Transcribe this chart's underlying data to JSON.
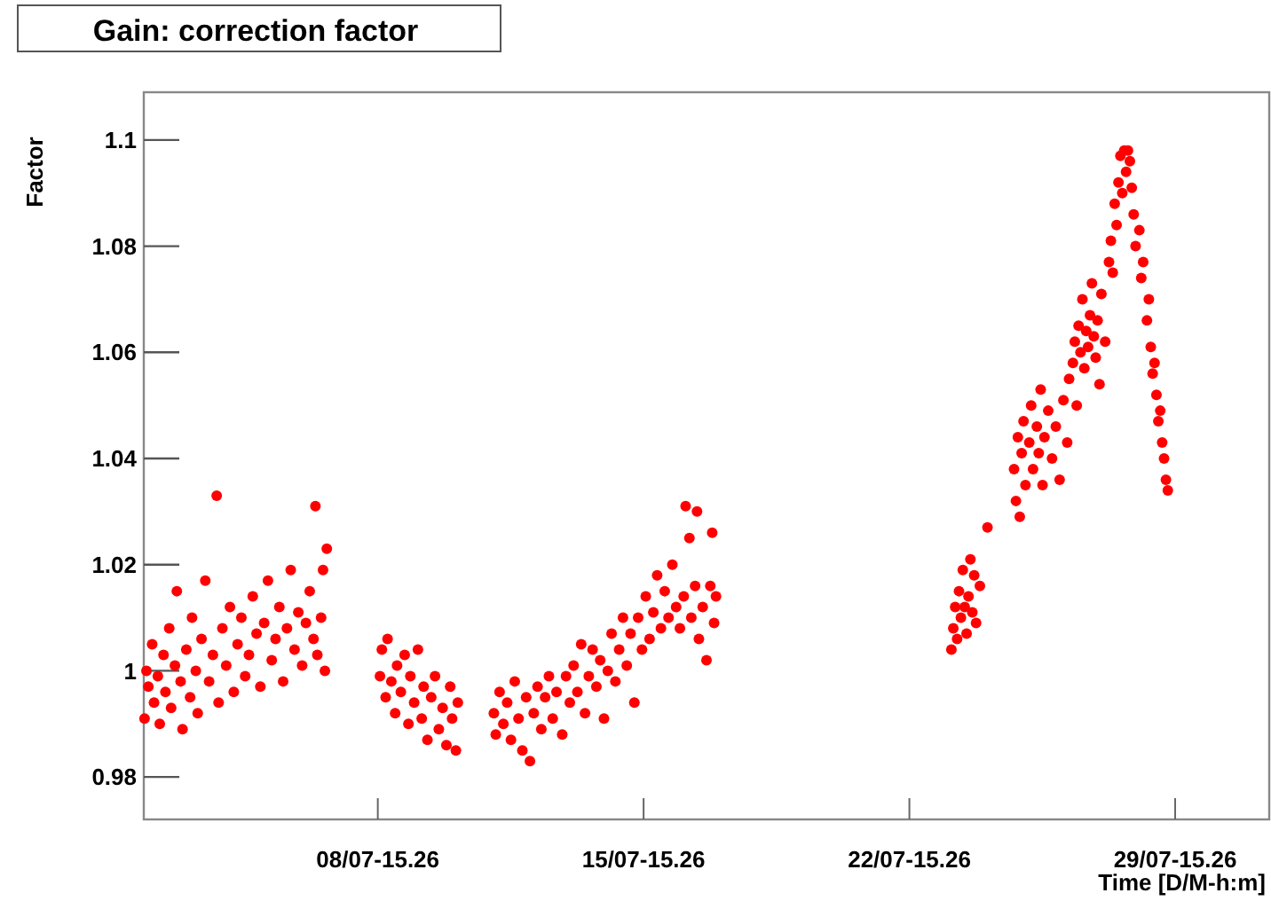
{
  "chart_data": {
    "type": "scatter",
    "title": "Gain: correction factor",
    "xlabel": "Time [D/M-h:m]",
    "ylabel": "Factor",
    "marker": "circle",
    "grid": false,
    "xlim": [
      "--07-02T11:31",
      "--08-01T02:53"
    ],
    "xticks": [
      {
        "value": "--07-08T15:26",
        "label": "08/07-15.26"
      },
      {
        "value": "--07-15T15:26",
        "label": "15/07-15.26"
      },
      {
        "value": "--07-22T15:26",
        "label": "22/07-15.26"
      },
      {
        "value": "--07-29T15:26",
        "label": "29/07-15.26"
      }
    ],
    "ylim": [
      0.972,
      1.109
    ],
    "yticks": [
      0.98,
      1,
      1.02,
      1.04,
      1.06,
      1.08,
      1.1
    ],
    "series": [
      {
        "color": "#ff0000",
        "x": [
          "--07-02T12:00",
          "--07-02T13:12",
          "--07-02T14:24",
          "--07-02T16:48",
          "--07-02T18:00",
          "--07-02T20:24",
          "--07-02T21:36",
          "--07-03T00:00",
          "--07-03T01:12",
          "--07-03T03:36",
          "--07-03T04:48",
          "--07-03T07:12",
          "--07-03T08:24",
          "--07-03T10:48",
          "--07-03T12:00",
          "--07-03T14:24",
          "--07-03T16:48",
          "--07-03T18:00",
          "--07-03T20:24",
          "--07-03T21:36",
          "--07-04T00:00",
          "--07-04T02:24",
          "--07-04T04:48",
          "--07-04T07:12",
          "--07-04T09:36",
          "--07-04T10:48",
          "--07-04T13:12",
          "--07-04T15:36",
          "--07-04T18:00",
          "--07-04T20:24",
          "--07-04T22:48",
          "--07-05T01:12",
          "--07-05T03:36",
          "--07-05T06:00",
          "--07-05T08:24",
          "--07-05T10:48",
          "--07-05T13:12",
          "--07-05T15:36",
          "--07-05T18:00",
          "--07-05T20:24",
          "--07-05T22:48",
          "--07-06T01:12",
          "--07-06T03:36",
          "--07-06T06:00",
          "--07-06T08:24",
          "--07-06T10:48",
          "--07-06T13:12",
          "--07-06T15:36",
          "--07-06T18:00",
          "--07-06T20:24",
          "--07-06T22:48",
          "--07-07T00:00",
          "--07-07T01:12",
          "--07-07T03:36",
          "--07-07T04:48",
          "--07-07T06:00",
          "--07-07T07:12",
          "--07-08T16:48",
          "--07-08T18:00",
          "--07-08T20:24",
          "--07-08T21:36",
          "--07-09T00:00",
          "--07-09T02:24",
          "--07-09T03:36",
          "--07-09T06:00",
          "--07-09T08:24",
          "--07-09T10:48",
          "--07-09T12:00",
          "--07-09T14:24",
          "--07-09T16:48",
          "--07-09T19:12",
          "--07-09T20:24",
          "--07-09T22:48",
          "--07-10T01:12",
          "--07-10T03:36",
          "--07-10T06:00",
          "--07-10T08:24",
          "--07-10T10:48",
          "--07-10T13:12",
          "--07-10T14:24",
          "--07-10T16:48",
          "--07-10T18:00",
          "--07-11T16:48",
          "--07-11T18:00",
          "--07-11T20:24",
          "--07-11T22:48",
          "--07-12T01:12",
          "--07-12T03:36",
          "--07-12T06:00",
          "--07-12T08:24",
          "--07-12T10:48",
          "--07-12T13:12",
          "--07-12T15:36",
          "--07-12T18:00",
          "--07-12T20:24",
          "--07-12T22:48",
          "--07-13T01:12",
          "--07-13T03:36",
          "--07-13T06:00",
          "--07-13T08:24",
          "--07-13T12:00",
          "--07-13T14:24",
          "--07-13T16:48",
          "--07-13T19:12",
          "--07-13T21:36",
          "--07-14T00:00",
          "--07-14T02:24",
          "--07-14T04:48",
          "--07-14T07:12",
          "--07-14T09:36",
          "--07-14T12:00",
          "--07-14T14:24",
          "--07-14T16:48",
          "--07-14T19:12",
          "--07-14T21:36",
          "--07-15T00:00",
          "--07-15T02:24",
          "--07-15T04:48",
          "--07-15T07:12",
          "--07-15T09:36",
          "--07-15T12:00",
          "--07-15T14:24",
          "--07-15T16:48",
          "--07-15T19:12",
          "--07-15T21:36",
          "--07-16T00:00",
          "--07-16T02:24",
          "--07-16T04:48",
          "--07-16T07:12",
          "--07-16T09:36",
          "--07-16T12:00",
          "--07-16T14:24",
          "--07-16T16:48",
          "--07-16T18:00",
          "--07-16T20:24",
          "--07-16T21:36",
          "--07-17T00:00",
          "--07-17T01:12",
          "--07-17T02:24",
          "--07-17T04:48",
          "--07-17T07:12",
          "--07-17T09:36",
          "--07-17T10:48",
          "--07-17T12:00",
          "--07-17T13:12",
          "--07-23T18:00",
          "--07-23T19:12",
          "--07-23T20:24",
          "--07-23T21:36",
          "--07-23T22:48",
          "--07-24T00:00",
          "--07-24T01:12",
          "--07-24T02:24",
          "--07-24T03:36",
          "--07-24T04:48",
          "--07-24T06:00",
          "--07-24T07:12",
          "--07-24T08:24",
          "--07-24T09:36",
          "--07-24T12:00",
          "--07-24T16:48",
          "--07-25T09:36",
          "--07-25T10:48",
          "--07-25T12:00",
          "--07-25T13:12",
          "--07-25T14:24",
          "--07-25T15:36",
          "--07-25T16:48",
          "--07-25T19:12",
          "--07-25T20:24",
          "--07-25T21:36",
          "--07-26T00:00",
          "--07-26T01:12",
          "--07-26T02:24",
          "--07-26T03:36",
          "--07-26T04:48",
          "--07-26T07:12",
          "--07-26T09:36",
          "--07-26T12:00",
          "--07-26T14:24",
          "--07-26T16:48",
          "--07-26T19:12",
          "--07-26T20:24",
          "--07-26T22:48",
          "--07-27T00:00",
          "--07-27T01:12",
          "--07-27T02:24",
          "--07-27T03:36",
          "--07-27T04:48",
          "--07-27T06:00",
          "--07-27T07:12",
          "--07-27T08:24",
          "--07-27T09:36",
          "--07-27T10:48",
          "--07-27T12:00",
          "--07-27T13:12",
          "--07-27T14:24",
          "--07-27T15:36",
          "--07-27T16:48",
          "--07-27T19:12",
          "--07-27T21:36",
          "--07-27T22:48",
          "--07-28T00:00",
          "--07-28T01:12",
          "--07-28T02:24",
          "--07-28T03:36",
          "--07-28T04:48",
          "--07-28T06:00",
          "--07-28T07:12",
          "--07-28T08:24",
          "--07-28T09:36",
          "--07-28T10:48",
          "--07-28T12:00",
          "--07-28T13:12",
          "--07-28T14:24",
          "--07-28T16:48",
          "--07-28T18:00",
          "--07-28T19:12",
          "--07-28T21:36",
          "--07-28T22:48",
          "--07-29T00:00",
          "--07-29T01:12",
          "--07-29T02:24",
          "--07-29T03:36",
          "--07-29T04:48",
          "--07-29T06:00",
          "--07-29T07:12",
          "--07-29T08:24",
          "--07-29T09:36",
          "--07-29T10:48"
        ],
        "values": [
          0.991,
          1.0,
          0.997,
          1.005,
          0.994,
          0.999,
          0.99,
          1.003,
          0.996,
          1.008,
          0.993,
          1.001,
          1.015,
          0.998,
          0.989,
          1.004,
          0.995,
          1.01,
          1.0,
          0.992,
          1.006,
          1.017,
          0.998,
          1.003,
          1.033,
          0.994,
          1.008,
          1.001,
          1.012,
          0.996,
          1.005,
          1.01,
          0.999,
          1.003,
          1.014,
          1.007,
          0.997,
          1.009,
          1.017,
          1.002,
          1.006,
          1.012,
          0.998,
          1.008,
          1.019,
          1.004,
          1.011,
          1.001,
          1.009,
          1.015,
          1.006,
          1.031,
          1.003,
          1.01,
          1.019,
          1.0,
          1.023,
          0.999,
          1.004,
          0.995,
          1.006,
          0.998,
          0.992,
          1.001,
          0.996,
          1.003,
          0.99,
          0.999,
          0.994,
          1.004,
          0.991,
          0.997,
          0.987,
          0.995,
          0.999,
          0.989,
          0.993,
          0.986,
          0.997,
          0.991,
          0.985,
          0.994,
          0.992,
          0.988,
          0.996,
          0.99,
          0.994,
          0.987,
          0.998,
          0.991,
          0.985,
          0.995,
          0.983,
          0.992,
          0.997,
          0.989,
          0.995,
          0.999,
          0.991,
          0.996,
          0.988,
          0.999,
          0.994,
          1.001,
          0.996,
          1.005,
          0.992,
          0.999,
          1.004,
          0.997,
          1.002,
          0.991,
          1.0,
          1.007,
          0.998,
          1.004,
          1.01,
          1.001,
          1.007,
          0.994,
          1.01,
          1.004,
          1.014,
          1.006,
          1.011,
          1.018,
          1.008,
          1.015,
          1.01,
          1.02,
          1.012,
          1.008,
          1.014,
          1.031,
          1.025,
          1.01,
          1.016,
          1.03,
          1.006,
          1.012,
          1.002,
          1.016,
          1.026,
          1.009,
          1.014,
          1.004,
          1.008,
          1.012,
          1.006,
          1.015,
          1.01,
          1.019,
          1.012,
          1.007,
          1.014,
          1.021,
          1.011,
          1.018,
          1.009,
          1.016,
          1.027,
          1.038,
          1.032,
          1.044,
          1.029,
          1.041,
          1.047,
          1.035,
          1.043,
          1.05,
          1.038,
          1.046,
          1.041,
          1.053,
          1.035,
          1.044,
          1.049,
          1.04,
          1.046,
          1.036,
          1.051,
          1.043,
          1.055,
          1.058,
          1.062,
          1.05,
          1.065,
          1.06,
          1.07,
          1.057,
          1.064,
          1.061,
          1.067,
          1.073,
          1.063,
          1.059,
          1.066,
          1.054,
          1.071,
          1.062,
          1.077,
          1.081,
          1.075,
          1.088,
          1.084,
          1.092,
          1.097,
          1.09,
          1.098,
          1.094,
          1.098,
          1.096,
          1.091,
          1.086,
          1.08,
          1.083,
          1.074,
          1.077,
          1.066,
          1.07,
          1.061,
          1.056,
          1.058,
          1.052,
          1.047,
          1.049,
          1.043,
          1.04,
          1.036,
          1.034
        ]
      }
    ]
  }
}
